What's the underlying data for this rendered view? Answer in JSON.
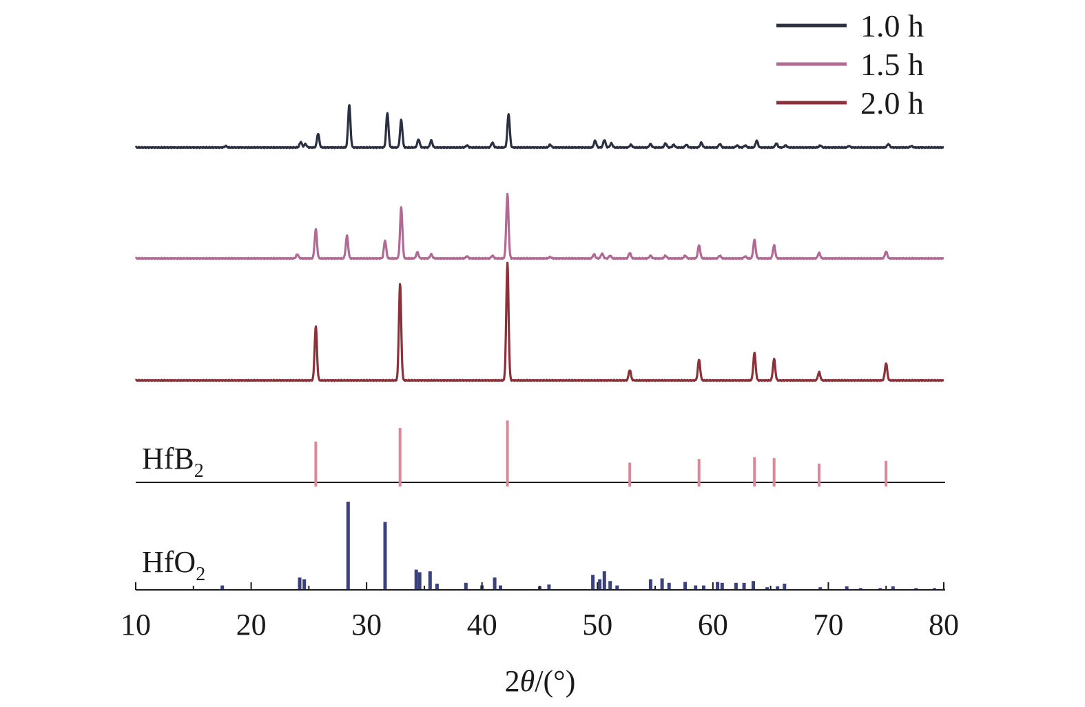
{
  "chart_data": {
    "type": "line",
    "title": "",
    "xlabel_prefix": "2",
    "xlabel_theta": "θ",
    "xlabel_suffix": "/(°)",
    "ylabel": "",
    "xlim": [
      10,
      80
    ],
    "xticks": [
      10,
      20,
      30,
      40,
      50,
      60,
      70,
      80
    ],
    "grid": false,
    "legend_position": "top-right",
    "series": [
      {
        "name": "1.0 h",
        "color": "#2b3040",
        "peaks": [
          {
            "x": 17.8,
            "h": 0.02
          },
          {
            "x": 24.3,
            "h": 0.08
          },
          {
            "x": 24.7,
            "h": 0.05
          },
          {
            "x": 25.8,
            "h": 0.2
          },
          {
            "x": 28.5,
            "h": 0.62
          },
          {
            "x": 31.8,
            "h": 0.5
          },
          {
            "x": 33.0,
            "h": 0.4
          },
          {
            "x": 34.5,
            "h": 0.12
          },
          {
            "x": 35.6,
            "h": 0.1
          },
          {
            "x": 38.7,
            "h": 0.03
          },
          {
            "x": 40.9,
            "h": 0.07
          },
          {
            "x": 42.3,
            "h": 0.49
          },
          {
            "x": 45.9,
            "h": 0.04
          },
          {
            "x": 49.8,
            "h": 0.1
          },
          {
            "x": 50.6,
            "h": 0.11
          },
          {
            "x": 51.2,
            "h": 0.06
          },
          {
            "x": 52.9,
            "h": 0.04
          },
          {
            "x": 54.6,
            "h": 0.05
          },
          {
            "x": 55.9,
            "h": 0.06
          },
          {
            "x": 56.6,
            "h": 0.04
          },
          {
            "x": 57.7,
            "h": 0.04
          },
          {
            "x": 59.0,
            "h": 0.07
          },
          {
            "x": 60.6,
            "h": 0.05
          },
          {
            "x": 62.1,
            "h": 0.03
          },
          {
            "x": 62.8,
            "h": 0.03
          },
          {
            "x": 63.8,
            "h": 0.1
          },
          {
            "x": 65.5,
            "h": 0.06
          },
          {
            "x": 66.3,
            "h": 0.03
          },
          {
            "x": 69.3,
            "h": 0.03
          },
          {
            "x": 71.8,
            "h": 0.02
          },
          {
            "x": 75.2,
            "h": 0.05
          },
          {
            "x": 77.2,
            "h": 0.02
          }
        ]
      },
      {
        "name": "1.5 h",
        "color": "#b06a93",
        "peaks": [
          {
            "x": 24.0,
            "h": 0.06
          },
          {
            "x": 25.6,
            "h": 0.42
          },
          {
            "x": 28.3,
            "h": 0.33
          },
          {
            "x": 31.6,
            "h": 0.26
          },
          {
            "x": 33.0,
            "h": 0.74
          },
          {
            "x": 34.4,
            "h": 0.09
          },
          {
            "x": 35.6,
            "h": 0.06
          },
          {
            "x": 38.7,
            "h": 0.03
          },
          {
            "x": 40.9,
            "h": 0.04
          },
          {
            "x": 42.2,
            "h": 0.93
          },
          {
            "x": 45.9,
            "h": 0.02
          },
          {
            "x": 49.7,
            "h": 0.06
          },
          {
            "x": 50.4,
            "h": 0.07
          },
          {
            "x": 51.1,
            "h": 0.04
          },
          {
            "x": 52.8,
            "h": 0.08
          },
          {
            "x": 54.6,
            "h": 0.04
          },
          {
            "x": 55.9,
            "h": 0.04
          },
          {
            "x": 57.6,
            "h": 0.04
          },
          {
            "x": 58.8,
            "h": 0.19
          },
          {
            "x": 60.6,
            "h": 0.04
          },
          {
            "x": 62.8,
            "h": 0.03
          },
          {
            "x": 63.6,
            "h": 0.27
          },
          {
            "x": 65.3,
            "h": 0.19
          },
          {
            "x": 69.2,
            "h": 0.08
          },
          {
            "x": 75.0,
            "h": 0.1
          }
        ]
      },
      {
        "name": "2.0 h",
        "color": "#8c3039",
        "peaks": [
          {
            "x": 25.6,
            "h": 0.78
          },
          {
            "x": 32.9,
            "h": 1.4
          },
          {
            "x": 42.2,
            "h": 1.7
          },
          {
            "x": 52.8,
            "h": 0.15
          },
          {
            "x": 58.8,
            "h": 0.3
          },
          {
            "x": 63.6,
            "h": 0.4
          },
          {
            "x": 65.3,
            "h": 0.31
          },
          {
            "x": 69.2,
            "h": 0.12
          },
          {
            "x": 75.0,
            "h": 0.25
          }
        ]
      }
    ],
    "references": [
      {
        "label": "HfB",
        "subscript": "2",
        "color": "#d98a98",
        "lines": [
          {
            "x": 25.6,
            "h": 0.49
          },
          {
            "x": 32.9,
            "h": 0.64
          },
          {
            "x": 42.2,
            "h": 0.72
          },
          {
            "x": 52.8,
            "h": 0.26
          },
          {
            "x": 58.8,
            "h": 0.3
          },
          {
            "x": 63.6,
            "h": 0.32
          },
          {
            "x": 65.3,
            "h": 0.31
          },
          {
            "x": 69.2,
            "h": 0.25
          },
          {
            "x": 75.0,
            "h": 0.28
          }
        ]
      },
      {
        "label": "HfO",
        "subscript": "2",
        "color": "#3a417c",
        "lines": [
          {
            "x": 17.5,
            "h": 0.05
          },
          {
            "x": 24.2,
            "h": 0.14
          },
          {
            "x": 24.6,
            "h": 0.12
          },
          {
            "x": 28.4,
            "h": 1.0
          },
          {
            "x": 31.6,
            "h": 0.77
          },
          {
            "x": 34.3,
            "h": 0.23
          },
          {
            "x": 34.6,
            "h": 0.2
          },
          {
            "x": 35.5,
            "h": 0.21
          },
          {
            "x": 36.1,
            "h": 0.07
          },
          {
            "x": 38.6,
            "h": 0.08
          },
          {
            "x": 40.0,
            "h": 0.05
          },
          {
            "x": 41.1,
            "h": 0.14
          },
          {
            "x": 41.6,
            "h": 0.05
          },
          {
            "x": 45.0,
            "h": 0.04
          },
          {
            "x": 45.8,
            "h": 0.06
          },
          {
            "x": 49.6,
            "h": 0.17
          },
          {
            "x": 50.2,
            "h": 0.12
          },
          {
            "x": 50.6,
            "h": 0.21
          },
          {
            "x": 51.1,
            "h": 0.1
          },
          {
            "x": 51.7,
            "h": 0.05
          },
          {
            "x": 54.6,
            "h": 0.12
          },
          {
            "x": 55.6,
            "h": 0.13
          },
          {
            "x": 56.2,
            "h": 0.08
          },
          {
            "x": 57.6,
            "h": 0.09
          },
          {
            "x": 58.5,
            "h": 0.05
          },
          {
            "x": 59.2,
            "h": 0.05
          },
          {
            "x": 60.4,
            "h": 0.09
          },
          {
            "x": 60.8,
            "h": 0.08
          },
          {
            "x": 62.0,
            "h": 0.08
          },
          {
            "x": 62.7,
            "h": 0.08
          },
          {
            "x": 63.5,
            "h": 0.1
          },
          {
            "x": 64.7,
            "h": 0.03
          },
          {
            "x": 65.6,
            "h": 0.04
          },
          {
            "x": 66.2,
            "h": 0.07
          },
          {
            "x": 69.3,
            "h": 0.03
          },
          {
            "x": 71.6,
            "h": 0.04
          },
          {
            "x": 72.8,
            "h": 0.02
          },
          {
            "x": 74.5,
            "h": 0.02
          },
          {
            "x": 75.6,
            "h": 0.04
          },
          {
            "x": 77.6,
            "h": 0.02
          },
          {
            "x": 79.2,
            "h": 0.02
          }
        ]
      }
    ]
  }
}
